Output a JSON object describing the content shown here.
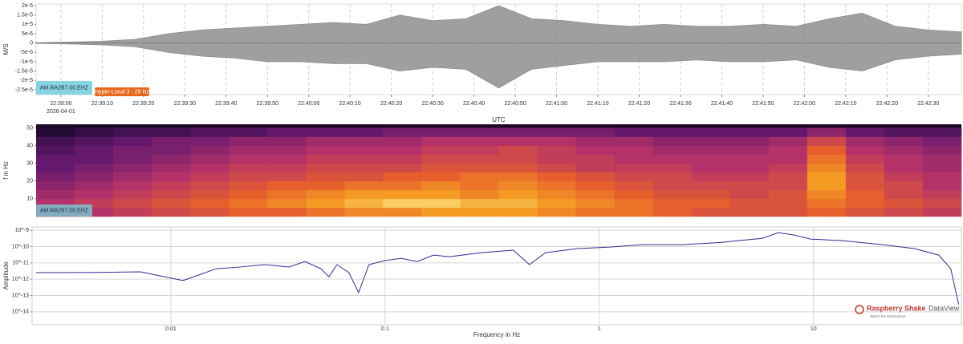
{
  "chart_data": [
    {
      "type": "band",
      "ylabel": "M/S",
      "xlabel": "UTC",
      "x_date": "2026-04-01",
      "x": [
        "22:38:54",
        "22:39:02",
        "22:39:10",
        "22:39:18",
        "22:39:26",
        "22:39:34",
        "22:39:42",
        "22:39:50",
        "22:39:58",
        "22:40:06",
        "22:40:14",
        "22:40:22",
        "22:40:30",
        "22:40:38",
        "22:40:46",
        "22:40:54",
        "22:41:02",
        "22:41:10",
        "22:41:18",
        "22:41:26",
        "22:41:34",
        "22:41:42",
        "22:41:50",
        "22:41:58",
        "22:42:06",
        "22:42:14",
        "22:42:22",
        "22:42:30",
        "22:42:38"
      ],
      "series": [
        {
          "color": "#8e8e8e",
          "values": [
            2e-07,
            5e-07,
            1e-06,
            2e-06,
            5e-06,
            7e-06,
            8e-06,
            9e-06,
            1e-05,
            1.1e-05,
            1e-05,
            1.5e-05,
            1.2e-05,
            1.3e-05,
            2e-05,
            1.3e-05,
            1.2e-05,
            1e-05,
            9e-06,
            1e-05,
            9e-06,
            9e-06,
            1e-05,
            9e-06,
            1.3e-05,
            1.6e-05,
            9e-06,
            7e-06,
            6e-06
          ]
        },
        {
          "color": "#8e8e8e",
          "values": [
            -2e-07,
            -5e-07,
            -1e-06,
            -2e-06,
            -5e-06,
            -7e-06,
            -8e-06,
            -1e-05,
            -1e-05,
            -1.1e-05,
            -1.1e-05,
            -1.5e-05,
            -1.3e-05,
            -1.4e-05,
            -2.4e-05,
            -1.4e-05,
            -1.2e-05,
            -1e-05,
            -1e-05,
            -1e-05,
            -9e-06,
            -1e-05,
            -1e-05,
            -9e-06,
            -1.3e-05,
            -1.5e-05,
            -9e-06,
            -7e-06,
            -6e-06
          ]
        }
      ],
      "xlim": [
        "22:38:54",
        "22:42:38"
      ],
      "xticks": [
        "22:39:00",
        "22:39:10",
        "22:39:20",
        "22:39:30",
        "22:39:40",
        "22:39:50",
        "22:40:00",
        "22:40:10",
        "22:40:20",
        "22:40:30",
        "22:40:40",
        "22:40:50",
        "22:41:00",
        "22:41:10",
        "22:41:20",
        "22:41:30",
        "22:41:40",
        "22:41:50",
        "22:42:00",
        "22:42:10",
        "22:42:20",
        "22:42:30"
      ],
      "ylim": [
        -2.76e-05,
        2.09e-05
      ],
      "yticks": [
        {
          "value": 2e-05,
          "label": "2e-5"
        },
        {
          "value": 1.5e-05,
          "label": "1.5e-5"
        },
        {
          "value": 1e-05,
          "label": "1e-5"
        },
        {
          "value": 5e-06,
          "label": "5e-6"
        },
        0,
        {
          "value": -5e-06,
          "label": "-5e-6"
        },
        {
          "value": -1e-05,
          "label": "-1e-5"
        },
        {
          "value": -1.5e-05,
          "label": "-1.5e-5"
        },
        {
          "value": -2e-05,
          "label": "-2e-5"
        },
        {
          "value": -2.5e-05,
          "label": "-2.5e-5"
        }
      ],
      "grid": true,
      "labels": [
        "AM.RA2B7.00.EHZ",
        "Hyper-Local 3 - 20 Hz"
      ]
    },
    {
      "type": "heatmap",
      "ylabel": "f in Hz",
      "xlim": [
        "22:38:54",
        "22:42:38"
      ],
      "ybins": [
        0,
        5,
        10,
        15,
        20,
        25,
        30,
        35,
        40,
        45,
        50
      ],
      "values": [
        [
          40,
          45,
          50,
          55,
          60,
          65,
          65,
          70,
          75,
          75,
          80,
          80,
          80,
          75,
          70,
          70,
          65,
          60,
          60,
          60,
          65,
          60,
          55,
          50
        ],
        [
          45,
          50,
          55,
          60,
          65,
          70,
          75,
          80,
          85,
          90,
          90,
          85,
          85,
          80,
          75,
          70,
          65,
          65,
          60,
          60,
          70,
          65,
          60,
          55
        ],
        [
          40,
          45,
          50,
          55,
          60,
          65,
          70,
          75,
          80,
          80,
          80,
          75,
          80,
          75,
          70,
          65,
          60,
          60,
          55,
          60,
          75,
          65,
          55,
          50
        ],
        [
          35,
          40,
          45,
          50,
          55,
          60,
          65,
          65,
          70,
          70,
          75,
          70,
          75,
          70,
          65,
          60,
          55,
          55,
          55,
          55,
          80,
          60,
          55,
          45
        ],
        [
          30,
          35,
          40,
          45,
          50,
          55,
          55,
          60,
          60,
          65,
          65,
          70,
          70,
          65,
          60,
          55,
          55,
          50,
          50,
          55,
          80,
          60,
          50,
          45
        ],
        [
          25,
          30,
          35,
          40,
          45,
          50,
          50,
          55,
          55,
          55,
          60,
          60,
          60,
          55,
          50,
          50,
          50,
          45,
          45,
          50,
          75,
          55,
          45,
          40
        ],
        [
          25,
          25,
          30,
          35,
          40,
          45,
          45,
          50,
          50,
          50,
          55,
          55,
          55,
          50,
          50,
          45,
          45,
          45,
          45,
          45,
          70,
          50,
          45,
          40
        ],
        [
          20,
          25,
          30,
          30,
          35,
          40,
          40,
          45,
          45,
          45,
          50,
          50,
          55,
          50,
          45,
          45,
          40,
          40,
          40,
          45,
          65,
          45,
          40,
          35
        ],
        [
          15,
          20,
          25,
          30,
          30,
          35,
          35,
          40,
          40,
          40,
          45,
          45,
          45,
          45,
          40,
          40,
          35,
          35,
          35,
          40,
          55,
          40,
          35,
          30
        ],
        [
          5,
          10,
          15,
          15,
          20,
          20,
          25,
          25,
          25,
          30,
          30,
          30,
          30,
          30,
          30,
          25,
          25,
          25,
          25,
          25,
          35,
          25,
          20,
          20
        ]
      ],
      "ylim": [
        0,
        52
      ],
      "yticks": [
        10,
        20,
        30,
        40,
        50
      ],
      "label": "AM.RA2B7.00.EHZ"
    },
    {
      "type": "line",
      "log_x": true,
      "log_y": true,
      "grid": true,
      "xlabel": "Frequency in Hz",
      "ylabel": "Amplitude",
      "x": [
        0.00235,
        0.00449,
        0.00721,
        0.0114,
        0.0163,
        0.0212,
        0.0274,
        0.0356,
        0.0422,
        0.0501,
        0.0547,
        0.0596,
        0.0678,
        0.0752,
        0.0841,
        0.1,
        0.119,
        0.141,
        0.168,
        0.2,
        0.281,
        0.397,
        0.472,
        0.561,
        0.792,
        1.12,
        1.58,
        2.43,
        3.74,
        4.45,
        5.76,
        6.84,
        8.13,
        9.66,
        13.6,
        21.0,
        29.6,
        38.4,
        43.7,
        47.6
      ],
      "series": [
        {
          "color": "#2c2e8e",
          "values": [
            2.5e-12,
            2.6e-12,
            2.8e-12,
            8.2e-13,
            4.4e-12,
            5.6e-12,
            7.8e-12,
            5.6e-12,
            1.2e-11,
            4.4e-12,
            1.4e-12,
            7.8e-12,
            2.5e-12,
            1.5e-13,
            7.8e-12,
            1.4e-11,
            1.9e-11,
            1.2e-11,
            3e-11,
            2.4e-11,
            4.2e-11,
            6e-11,
            7.8e-12,
            4.2e-11,
            7.5e-11,
            9.3e-11,
            1.3e-10,
            1.3e-10,
            1.8e-10,
            2.3e-10,
            3.2e-10,
            7.1e-10,
            5.1e-10,
            2.9e-10,
            2.3e-10,
            1.3e-10,
            7.5e-11,
            3e-11,
            4.4e-12,
            2.8e-14
          ]
        }
      ],
      "xlim": [
        0.00225,
        49
      ],
      "ylim": [
        1.6e-15,
        1.6e-09
      ],
      "xticks": [
        0.01,
        0.1,
        1,
        10
      ],
      "yticks": [
        {
          "value": 1e-09,
          "label": "10^-9"
        },
        {
          "value": 1e-10,
          "label": "10^-10"
        },
        {
          "value": 1e-11,
          "label": "10^-11"
        },
        {
          "value": 1e-12,
          "label": "10^-12"
        },
        {
          "value": 1e-13,
          "label": "10^-13"
        },
        {
          "value": 1e-14,
          "label": "10^-14"
        }
      ]
    }
  ],
  "branding": {
    "name": "Raspberry Shake",
    "product": "DataView",
    "tagline": "Watch the Earth Move"
  }
}
